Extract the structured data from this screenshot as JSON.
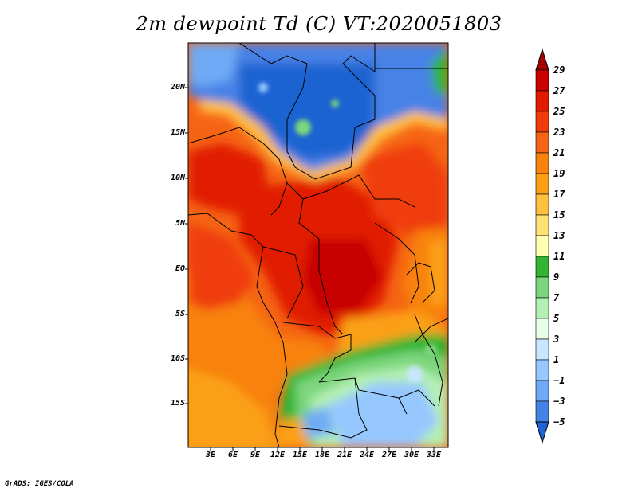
{
  "title": "2m dewpoint Td (C) VT:2020051803",
  "credit": "GrADS: IGES/COLA",
  "map": {
    "lat_ticks": [
      "20N",
      "15N",
      "10N",
      "5N",
      "EQ",
      "5S",
      "10S",
      "15S"
    ],
    "lon_ticks": [
      "3E",
      "6E",
      "9E",
      "12E",
      "15E",
      "18E",
      "21E",
      "24E",
      "27E",
      "30E",
      "33E"
    ]
  },
  "colorbar": {
    "labels": [
      "29",
      "27",
      "25",
      "23",
      "21",
      "19",
      "17",
      "15",
      "13",
      "11",
      "9",
      "7",
      "5",
      "3",
      "1",
      "−1",
      "−3",
      "−5"
    ],
    "colors": [
      "#a50000",
      "#c80000",
      "#e11b00",
      "#f03c0a",
      "#f56414",
      "#f8820c",
      "#fba014",
      "#ffc040",
      "#ffe173",
      "#ffffb4",
      "#32b432",
      "#7dd67d",
      "#b4f0b4",
      "#e6ffe6",
      "#c8e6ff",
      "#96c8ff",
      "#6eaaf5",
      "#4682e6",
      "#1e64d2"
    ]
  }
}
